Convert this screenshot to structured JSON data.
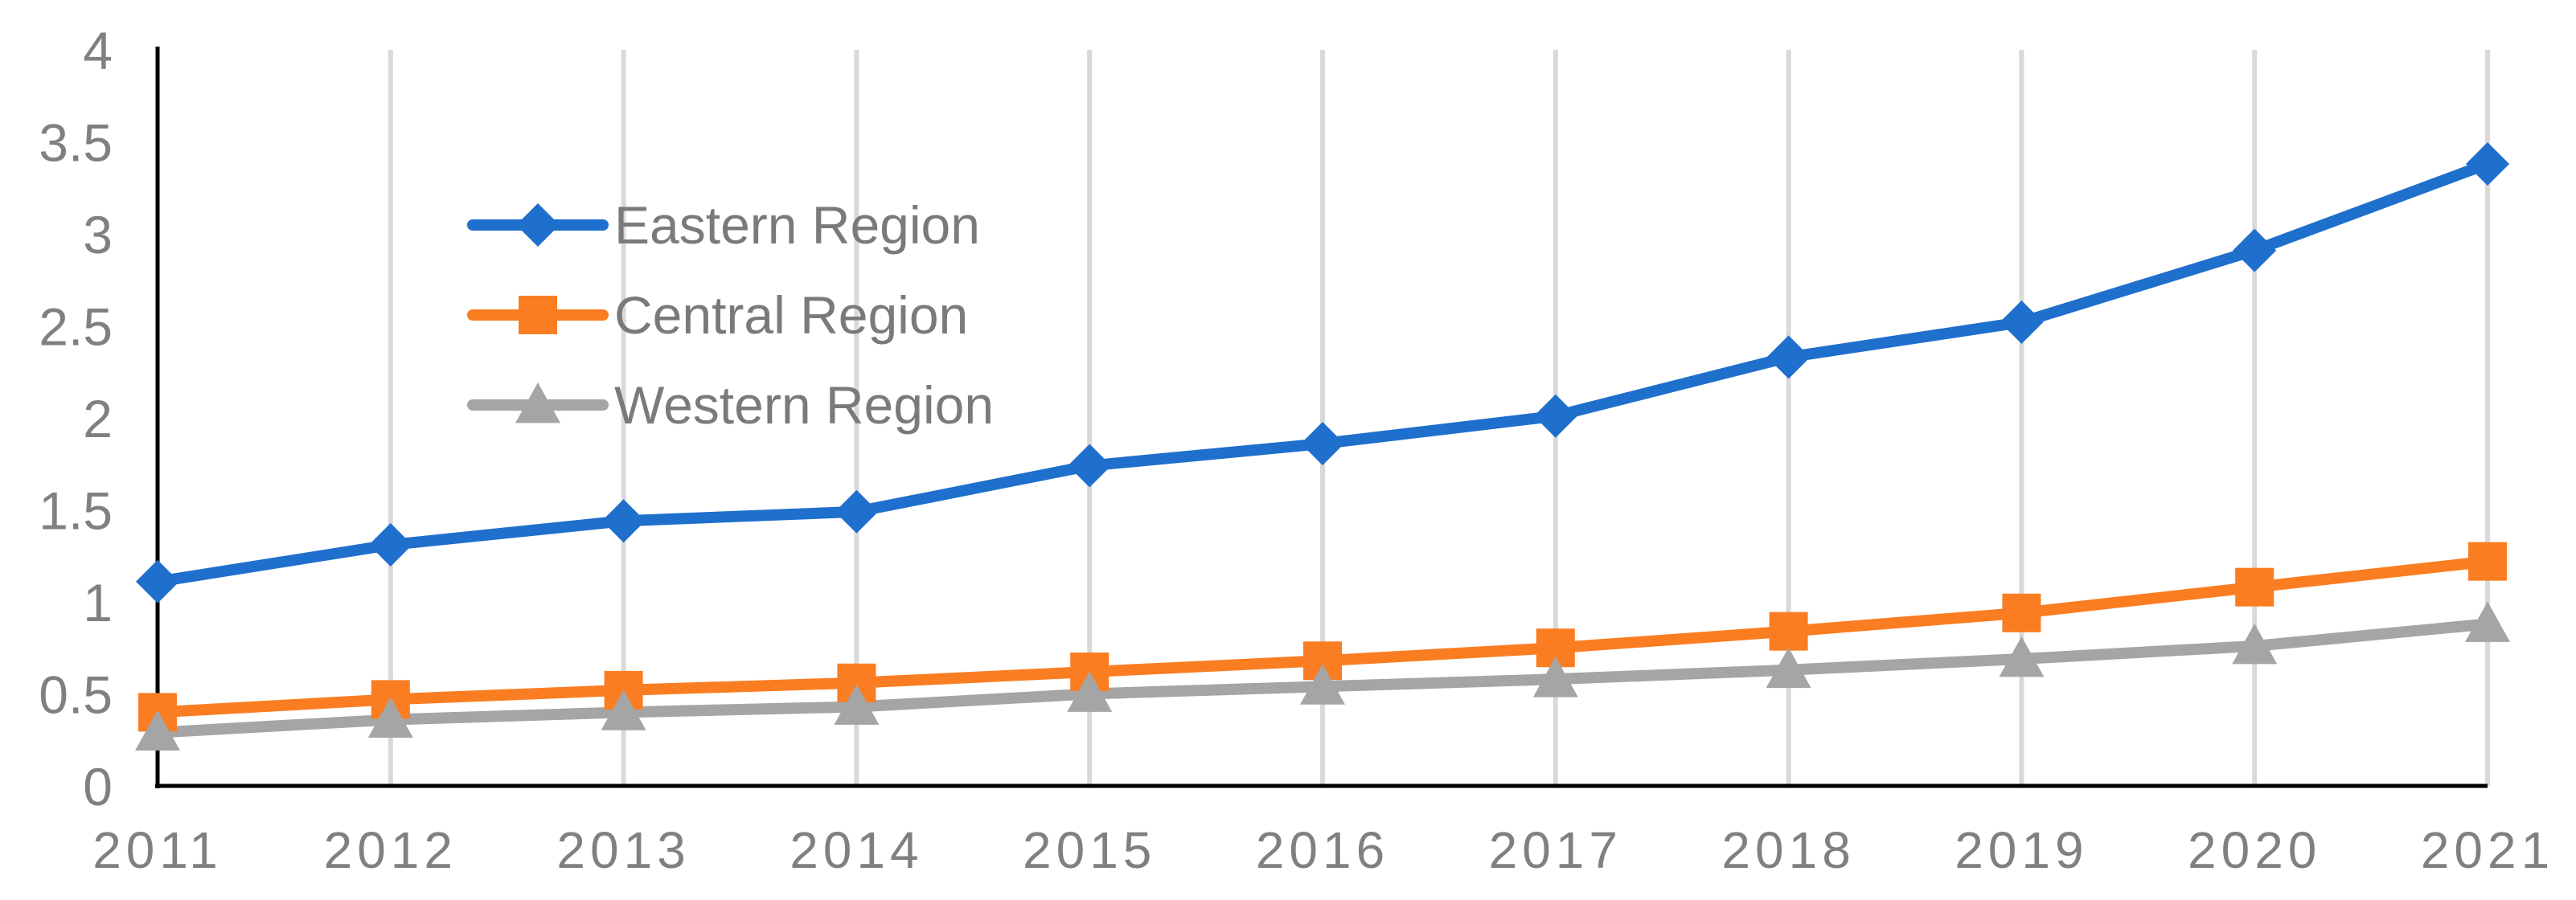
{
  "chart_data": {
    "type": "line",
    "title": "",
    "xlabel": "",
    "ylabel": "",
    "categories": [
      "2011",
      "2012",
      "2013",
      "2014",
      "2015",
      "2016",
      "2017",
      "2018",
      "2019",
      "2020",
      "2021"
    ],
    "ylim": [
      0,
      4
    ],
    "yticks": [
      "0",
      "0.5",
      "1",
      "1.5",
      "2",
      "2.5",
      "3",
      "3.5",
      "4"
    ],
    "grid": "vertical",
    "legend_position": "top-left",
    "series": [
      {
        "name": "Eastern Region",
        "color": "#1f6fcc",
        "marker": "diamond",
        "values": [
          1.11,
          1.31,
          1.44,
          1.49,
          1.74,
          1.86,
          2.01,
          2.33,
          2.52,
          2.91,
          3.38
        ]
      },
      {
        "name": "Central Region",
        "color": "#fa7d22",
        "marker": "square",
        "values": [
          0.4,
          0.47,
          0.52,
          0.56,
          0.62,
          0.68,
          0.75,
          0.84,
          0.94,
          1.08,
          1.22
        ]
      },
      {
        "name": "Western Region",
        "color": "#a5a5a5",
        "marker": "triangle",
        "values": [
          0.29,
          0.36,
          0.4,
          0.43,
          0.5,
          0.54,
          0.58,
          0.63,
          0.69,
          0.76,
          0.88
        ]
      }
    ]
  }
}
